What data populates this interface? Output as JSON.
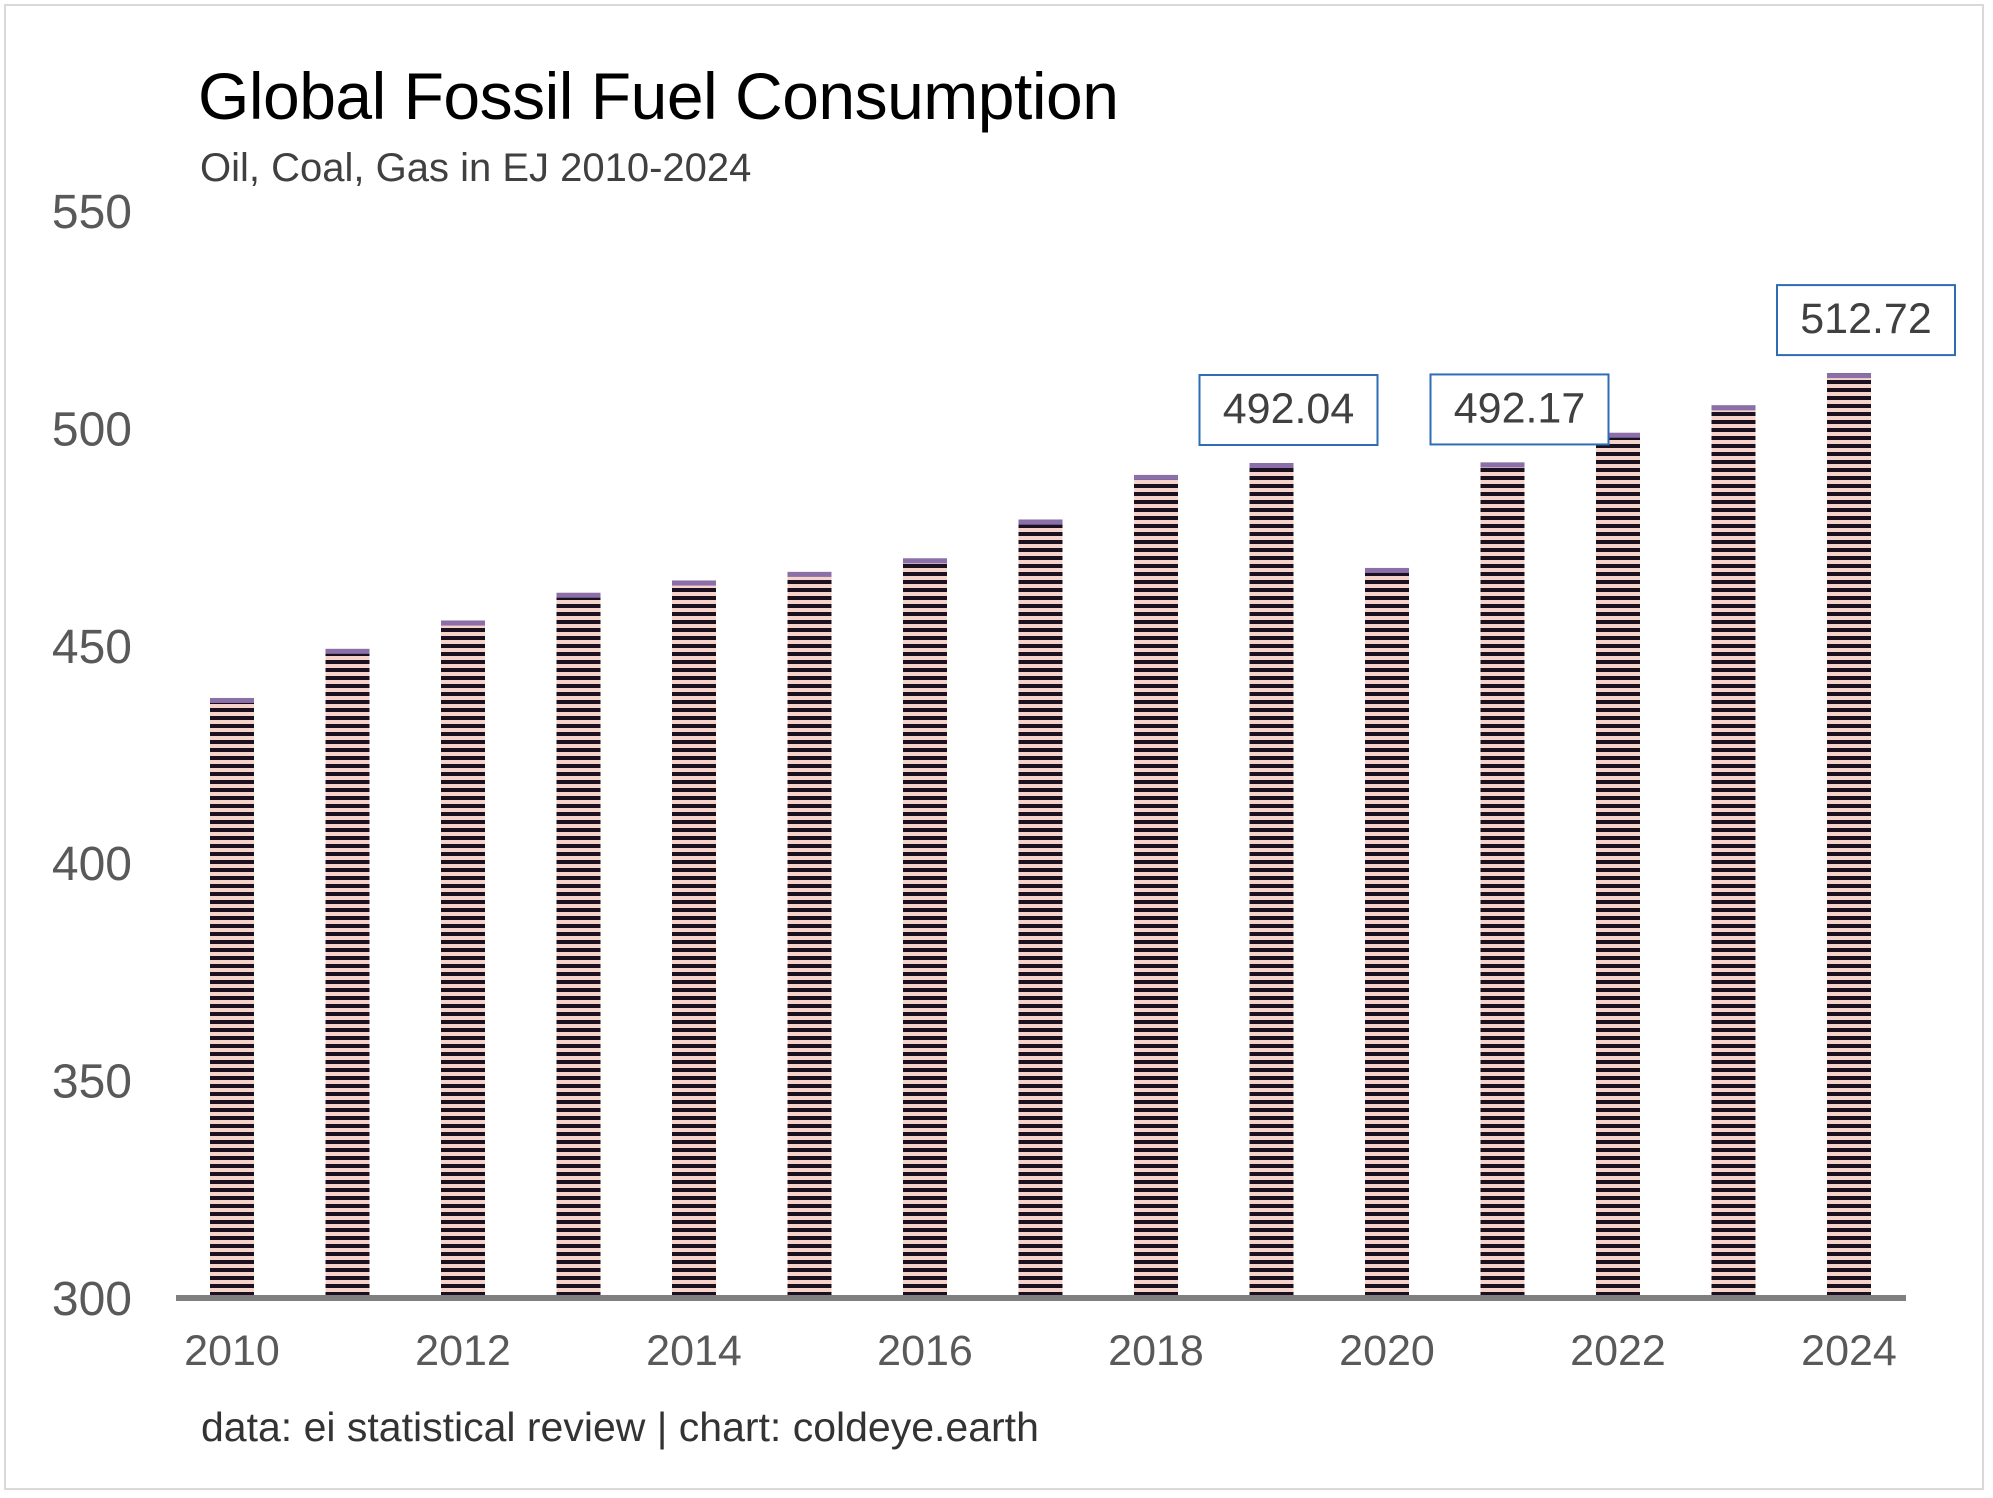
{
  "chart_data": {
    "type": "bar",
    "title": "Global Fossil Fuel Consumption",
    "subtitle": "Oil, Coal, Gas in EJ 2010-2024",
    "source": "data: ei statistical review | chart: coldeye.earth",
    "xlabel": "",
    "ylabel": "",
    "ylim": [
      300,
      550
    ],
    "yticks": [
      300,
      350,
      400,
      450,
      500,
      550
    ],
    "grid": false,
    "legend": "none",
    "categories": [
      "2010",
      "2011",
      "2012",
      "2013",
      "2014",
      "2015",
      "2016",
      "2017",
      "2018",
      "2019",
      "2020",
      "2021",
      "2022",
      "2023",
      "2024"
    ],
    "x_tick_labels": [
      "2010",
      "",
      "2012",
      "",
      "2014",
      "",
      "2016",
      "",
      "2018",
      "",
      "2020",
      "",
      "2022",
      "",
      "2024"
    ],
    "values": [
      438.0,
      449.3,
      455.8,
      462.2,
      465.0,
      467.0,
      470.1,
      479.0,
      489.3,
      492.04,
      467.9,
      492.17,
      499.0,
      505.3,
      512.72
    ],
    "data_labels": [
      {
        "category": "2019",
        "text": "492.04"
      },
      {
        "category": "2021",
        "text": "492.17"
      },
      {
        "category": "2024",
        "text": "512.72"
      }
    ],
    "colors": {
      "bar_light": "#f6d3c8",
      "bar_dark": "#1a1020",
      "bar_top": "#8a6fa8",
      "axis": "#7f7f7f",
      "label_border": "#2e6db4"
    }
  }
}
